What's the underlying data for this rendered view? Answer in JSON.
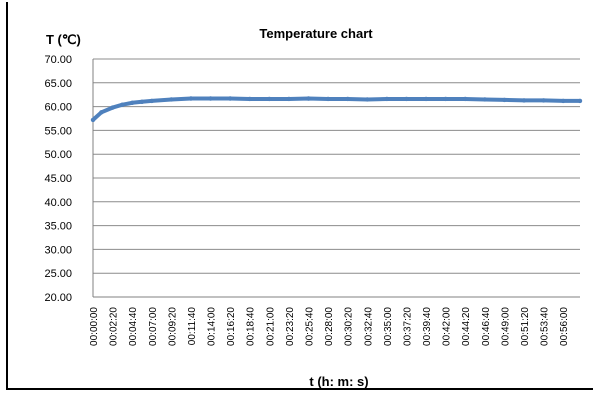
{
  "chart_data": {
    "type": "line",
    "title": "Temperature chart",
    "ylabel": "T (℃)",
    "xlabel": "t (h: m: s)",
    "ylim": [
      20,
      70
    ],
    "yticks": [
      "20.00",
      "25.00",
      "30.00",
      "35.00",
      "40.00",
      "45.00",
      "50.00",
      "55.00",
      "60.00",
      "65.00",
      "70.00"
    ],
    "grid": true,
    "legend": "none",
    "x_tick_labels": [
      "00:00:00",
      "00:02:20",
      "00:04:40",
      "00:07:00",
      "00:09:20",
      "00:11:40",
      "00:14:00",
      "00:16:20",
      "00:18:40",
      "00:21:00",
      "00:23:20",
      "00:25:40",
      "00:28:00",
      "00:30:20",
      "00:32:40",
      "00:35:00",
      "00:37:20",
      "00:39:40",
      "00:42:00",
      "00:44:20",
      "00:46:40",
      "00:49:00",
      "00:51:20",
      "00:53:40",
      "00:56:00"
    ],
    "series": [
      {
        "x": [
          "00:00:00",
          "00:01:00",
          "00:02:20",
          "00:03:30",
          "00:04:40",
          "00:05:50",
          "00:07:00",
          "00:09:20",
          "00:11:40",
          "00:14:00",
          "00:16:20",
          "00:18:40",
          "00:21:00",
          "00:23:20",
          "00:25:40",
          "00:28:00",
          "00:30:20",
          "00:32:40",
          "00:35:00",
          "00:37:20",
          "00:39:40",
          "00:42:00",
          "00:44:20",
          "00:46:40",
          "00:49:00",
          "00:51:20",
          "00:53:40",
          "00:56:00",
          "00:58:00"
        ],
        "values": [
          57.2,
          58.8,
          59.8,
          60.4,
          60.8,
          61.0,
          61.2,
          61.5,
          61.7,
          61.7,
          61.7,
          61.6,
          61.6,
          61.6,
          61.7,
          61.6,
          61.6,
          61.5,
          61.6,
          61.6,
          61.6,
          61.6,
          61.6,
          61.5,
          61.4,
          61.3,
          61.3,
          61.2,
          61.2
        ],
        "color": "#4f81bd"
      }
    ]
  }
}
